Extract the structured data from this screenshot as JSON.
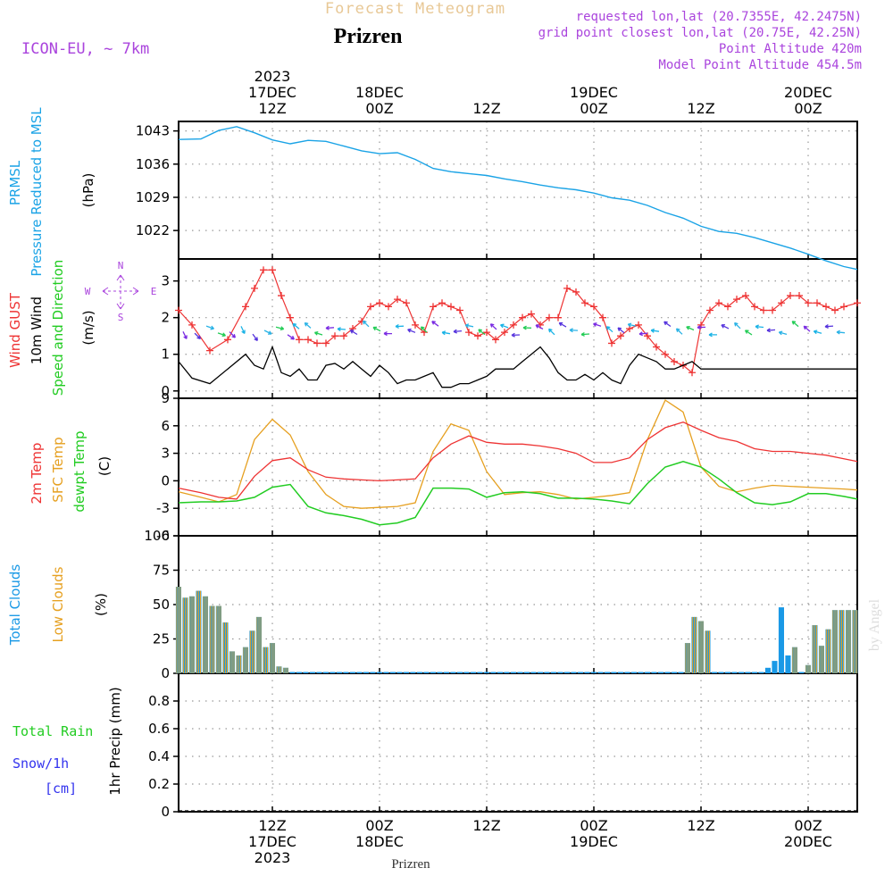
{
  "header": {
    "super_title": "Forecast Meteogram",
    "station": "Prizren",
    "model": "ICON-EU, ~ 7km",
    "requested": "requested lon,lat (20.7355E, 42.2475N)",
    "grid_point": "grid point closest lon,lat (20.75E, 42.25N)",
    "point_alt": "Point Altitude 420m",
    "model_alt": "Model Point Altitude 454.5m",
    "watermark": "by Angel",
    "bottom_label": "Prizren"
  },
  "time_axis": {
    "year": "2023",
    "top": [
      {
        "t": 12,
        "lines": [
          "2023",
          "17DEC",
          "12Z"
        ]
      },
      {
        "t": 24,
        "lines": [
          "18DEC",
          "00Z"
        ]
      },
      {
        "t": 36,
        "lines": [
          "12Z"
        ]
      },
      {
        "t": 48,
        "lines": [
          "19DEC",
          "00Z"
        ]
      },
      {
        "t": 60,
        "lines": [
          "12Z"
        ]
      },
      {
        "t": 72,
        "lines": [
          "20DEC",
          "00Z"
        ]
      }
    ],
    "bottom": [
      {
        "t": 12,
        "lines": [
          "12Z",
          "17DEC",
          "2023"
        ]
      },
      {
        "t": 24,
        "lines": [
          "00Z",
          "18DEC"
        ]
      },
      {
        "t": 36,
        "lines": [
          "12Z"
        ]
      },
      {
        "t": 48,
        "lines": [
          "00Z",
          "19DEC"
        ]
      },
      {
        "t": 60,
        "lines": [
          "12Z"
        ]
      },
      {
        "t": 72,
        "lines": [
          "00Z",
          "20DEC"
        ]
      }
    ],
    "t_start": 1.5,
    "t_end": 77.5
  },
  "colors": {
    "pressure": "#1aa3e6",
    "gust": "#ee3333",
    "wind": "#000000",
    "t2m": "#ee3333",
    "sfc": "#e6a020",
    "dewpt": "#22cc22",
    "total_clouds": "#1a99e6",
    "low_clouds": "#e6a020",
    "rain": "#22cc22",
    "snow": "#3333ee",
    "compass": "#aa44dd",
    "header_purple": "#aa44dd"
  },
  "chart_data": [
    {
      "type": "line",
      "id": "pressure",
      "ylabel_lines": [
        "PRMSL",
        "Pressure Reduced to MSL"
      ],
      "unit": "(hPa)",
      "ylim": [
        1016,
        1045
      ],
      "yticks": [
        1022,
        1029,
        1036,
        1043
      ],
      "grid": true,
      "x": [
        1.5,
        4,
        6,
        8,
        10,
        12,
        14,
        16,
        18,
        20,
        22,
        24,
        26,
        28,
        30,
        32,
        34,
        36,
        38,
        40,
        42,
        44,
        46,
        48,
        50,
        52,
        54,
        56,
        58,
        60,
        62,
        64,
        66,
        68,
        70,
        72,
        74,
        76,
        77.5
      ],
      "series": [
        {
          "name": "PRMSL",
          "values": [
            1041.2,
            1041.3,
            1043.1,
            1043.9,
            1042.6,
            1041.1,
            1040.3,
            1041.0,
            1040.8,
            1039.8,
            1038.8,
            1038.2,
            1038.4,
            1037.0,
            1035.1,
            1034.4,
            1034.0,
            1033.6,
            1032.9,
            1032.3,
            1031.6,
            1031.0,
            1030.6,
            1029.9,
            1028.9,
            1028.4,
            1027.3,
            1025.8,
            1024.6,
            1022.9,
            1021.8,
            1021.4,
            1020.5,
            1019.4,
            1018.3,
            1017.0,
            1015.6,
            1014.4,
            1013.8
          ]
        }
      ]
    },
    {
      "type": "line",
      "id": "wind",
      "ylabel_lines": [
        "Wind GUST",
        "10m Wind",
        "Speed and Direction"
      ],
      "unit": "(m/s)",
      "compass": {
        "n": "N",
        "s": "S",
        "w": "W",
        "e": "E"
      },
      "ylim": [
        -0.2,
        3.6
      ],
      "yticks": [
        0,
        1,
        2,
        3
      ],
      "grid": true,
      "x": [
        1.5,
        3,
        5,
        7,
        9,
        10,
        11,
        12,
        13,
        14,
        15,
        16,
        17,
        18,
        19,
        20,
        21,
        22,
        23,
        24,
        25,
        26,
        27,
        28,
        29,
        30,
        31,
        32,
        33,
        34,
        35,
        36,
        37,
        38,
        39,
        40,
        41,
        42,
        43,
        44,
        45,
        46,
        47,
        48,
        49,
        50,
        51,
        52,
        53,
        54,
        55,
        56,
        57,
        58,
        59,
        60,
        61,
        62,
        63,
        64,
        65,
        66,
        67,
        68,
        69,
        70,
        71,
        72,
        73,
        74,
        75,
        76,
        77.5
      ],
      "series": [
        {
          "name": "Wind GUST",
          "values": [
            2.2,
            1.8,
            1.1,
            1.4,
            2.3,
            2.8,
            3.3,
            3.3,
            2.6,
            2.0,
            1.4,
            1.4,
            1.3,
            1.3,
            1.5,
            1.5,
            1.7,
            1.9,
            2.3,
            2.4,
            2.3,
            2.5,
            2.4,
            1.8,
            1.6,
            2.3,
            2.4,
            2.3,
            2.2,
            1.6,
            1.5,
            1.6,
            1.4,
            1.6,
            1.8,
            2.0,
            2.1,
            1.8,
            2.0,
            2.0,
            2.8,
            2.7,
            2.4,
            2.3,
            2.0,
            1.3,
            1.5,
            1.7,
            1.8,
            1.5,
            1.2,
            1.0,
            0.8,
            0.7,
            0.5,
            1.8,
            2.2,
            2.4,
            2.3,
            2.5,
            2.6,
            2.3,
            2.2,
            2.2,
            2.4,
            2.6,
            2.6,
            2.4,
            2.4,
            2.3,
            2.2,
            2.3,
            2.4
          ]
        },
        {
          "name": "10m Wind",
          "values": [
            0.8,
            0.35,
            0.2,
            0.6,
            1.0,
            0.7,
            0.6,
            1.2,
            0.5,
            0.4,
            0.6,
            0.3,
            0.3,
            0.7,
            0.75,
            0.6,
            0.8,
            0.6,
            0.4,
            0.7,
            0.5,
            0.2,
            0.3,
            0.3,
            0.4,
            0.5,
            0.1,
            0.1,
            0.2,
            0.2,
            0.3,
            0.4,
            0.6,
            0.6,
            0.6,
            0.8,
            1.0,
            1.2,
            0.9,
            0.5,
            0.3,
            0.3,
            0.45,
            0.3,
            0.5,
            0.3,
            0.2,
            0.7,
            1.0,
            0.9,
            0.8,
            0.6,
            0.6,
            0.7,
            0.8,
            0.6,
            0.6,
            0.6,
            0.6,
            0.6,
            0.6,
            0.6,
            0.6,
            0.6,
            0.6,
            0.6,
            0.6,
            0.6,
            0.6,
            0.6,
            0.6,
            0.6,
            0.6
          ]
        }
      ]
    },
    {
      "type": "line",
      "id": "temperature",
      "ylabel_lines": [
        "2m Temp",
        "SFC Temp",
        "dewpt Temp"
      ],
      "unit": "(C)",
      "ylim": [
        -6,
        9
      ],
      "yticks": [
        -6,
        -3,
        0,
        3,
        6,
        9
      ],
      "grid": true,
      "x": [
        1.5,
        4,
        6,
        8,
        10,
        12,
        14,
        16,
        18,
        20,
        22,
        24,
        26,
        28,
        30,
        32,
        34,
        36,
        38,
        40,
        42,
        44,
        46,
        48,
        50,
        52,
        54,
        56,
        58,
        60,
        62,
        64,
        66,
        68,
        70,
        72,
        74,
        76,
        77.5
      ],
      "series": [
        {
          "name": "2m Temp",
          "values": [
            -0.8,
            -1.3,
            -1.8,
            -2.0,
            0.5,
            2.2,
            2.5,
            1.2,
            0.4,
            0.2,
            0.1,
            0.0,
            0.1,
            0.2,
            2.5,
            4.0,
            4.9,
            4.2,
            4.0,
            4.0,
            3.8,
            3.5,
            3.0,
            2.0,
            2.0,
            2.5,
            4.5,
            5.8,
            6.4,
            5.5,
            4.7,
            4.3,
            3.5,
            3.2,
            3.2,
            3.0,
            2.8,
            2.4,
            2.1
          ]
        },
        {
          "name": "SFC Temp",
          "values": [
            -1.2,
            -1.8,
            -2.3,
            -1.5,
            4.5,
            6.7,
            5.0,
            1.0,
            -1.5,
            -2.8,
            -3.0,
            -2.9,
            -2.8,
            -2.4,
            3.2,
            6.2,
            5.5,
            1.0,
            -1.5,
            -1.3,
            -1.2,
            -1.5,
            -2.0,
            -1.8,
            -1.6,
            -1.3,
            4.5,
            8.8,
            7.5,
            1.5,
            -0.6,
            -1.2,
            -0.8,
            -0.5,
            -0.6,
            -0.7,
            -0.8,
            -0.9,
            -1.0
          ]
        },
        {
          "name": "dewpt Temp",
          "values": [
            -2.4,
            -2.3,
            -2.3,
            -2.2,
            -1.8,
            -0.7,
            -0.4,
            -2.8,
            -3.5,
            -3.8,
            -4.2,
            -4.8,
            -4.6,
            -4.0,
            -0.8,
            -0.8,
            -0.9,
            -1.8,
            -1.3,
            -1.2,
            -1.4,
            -1.9,
            -1.9,
            -2.0,
            -2.2,
            -2.5,
            -0.3,
            1.5,
            2.1,
            1.5,
            0.2,
            -1.3,
            -2.4,
            -2.6,
            -2.3,
            -1.4,
            -1.4,
            -1.7,
            -2.0
          ]
        }
      ]
    },
    {
      "type": "bar",
      "id": "clouds",
      "ylabel_lines": [
        "Total Clouds",
        "Low Clouds"
      ],
      "unit": "(%)",
      "ylim": [
        0,
        100
      ],
      "yticks": [
        0,
        25,
        50,
        75,
        100
      ],
      "grid": true,
      "x": [
        1.5,
        2.25,
        3,
        3.75,
        4.5,
        5.25,
        6,
        6.75,
        7.5,
        8.25,
        9,
        9.75,
        10.5,
        11.25,
        12,
        12.75,
        13.5,
        14.25,
        15,
        15.75,
        16.5,
        17.25,
        18,
        18.75,
        19.5,
        20.25,
        21,
        21.75,
        22.5,
        23.25,
        24,
        24.75,
        25.5,
        26.25,
        27,
        27.75,
        28.5,
        29.25,
        30,
        30.75,
        31.5,
        32.25,
        33,
        33.75,
        34.5,
        35.25,
        36,
        36.75,
        37.5,
        38.25,
        39,
        39.75,
        40.5,
        41.25,
        42,
        42.75,
        43.5,
        44.25,
        45,
        45.75,
        46.5,
        47.25,
        48,
        48.75,
        49.5,
        50.25,
        51,
        51.75,
        52.5,
        53.25,
        54,
        54.75,
        55.5,
        56.25,
        57,
        57.75,
        58.5,
        59.25,
        60,
        60.75,
        61.5,
        62.25,
        63,
        63.75,
        64.5,
        65.25,
        66,
        66.75,
        67.5,
        68.25,
        69,
        69.75,
        70.5,
        71.25,
        72,
        72.75,
        73.5,
        74.25,
        75,
        75.75,
        76.5,
        77.25
      ],
      "series": [
        {
          "name": "Total Clouds",
          "values": [
            63,
            55,
            56,
            60,
            56,
            49,
            49,
            37,
            16,
            13,
            19,
            31,
            41,
            19,
            22,
            5,
            4,
            1,
            1,
            1,
            1,
            1,
            1,
            1,
            1,
            1,
            1,
            1,
            1,
            1,
            1,
            1,
            1,
            1,
            1,
            1,
            1,
            1,
            1,
            1,
            1,
            1,
            1,
            1,
            1,
            1,
            1,
            1,
            1,
            1,
            1,
            1,
            1,
            1,
            1,
            1,
            1,
            1,
            1,
            1,
            1,
            1,
            1,
            1,
            1,
            1,
            1,
            1,
            1,
            1,
            1,
            1,
            1,
            1,
            1,
            1,
            22,
            41,
            38,
            31,
            1,
            1,
            1,
            1,
            1,
            1,
            1,
            1,
            4,
            9,
            48,
            13,
            19,
            1,
            6,
            35,
            20,
            32,
            46,
            46,
            46,
            46
          ]
        },
        {
          "name": "Low Clouds",
          "values": [
            63,
            55,
            56,
            60,
            56,
            49,
            49,
            37,
            16,
            13,
            19,
            31,
            41,
            19,
            22,
            5,
            4,
            0,
            0,
            0,
            0,
            0,
            0,
            0,
            0,
            0,
            0,
            0,
            0,
            0,
            0,
            0,
            0,
            0,
            0,
            0,
            0,
            0,
            0,
            0,
            0,
            0,
            0,
            0,
            0,
            0,
            0,
            0,
            0,
            0,
            0,
            0,
            0,
            0,
            0,
            0,
            0,
            0,
            0,
            0,
            0,
            0,
            0,
            0,
            0,
            0,
            0,
            0,
            0,
            0,
            0,
            0,
            0,
            0,
            0,
            0,
            22,
            41,
            38,
            31,
            0,
            0,
            0,
            0,
            0,
            0,
            0,
            0,
            0,
            0,
            0,
            0,
            19,
            0,
            6,
            35,
            20,
            32,
            46,
            46,
            46,
            46
          ]
        }
      ]
    },
    {
      "type": "bar",
      "id": "precip",
      "ylabel_lines": [
        "1hr Precip (mm)"
      ],
      "side_labels": [
        "Total  Rain",
        "Snow/1h",
        "[cm]"
      ],
      "ylim": [
        0,
        1.0
      ],
      "yticks": [
        0,
        0.2,
        0.4,
        0.6,
        0.8
      ],
      "grid": true,
      "series": [
        {
          "name": "Total Rain",
          "values": []
        }
      ]
    }
  ]
}
